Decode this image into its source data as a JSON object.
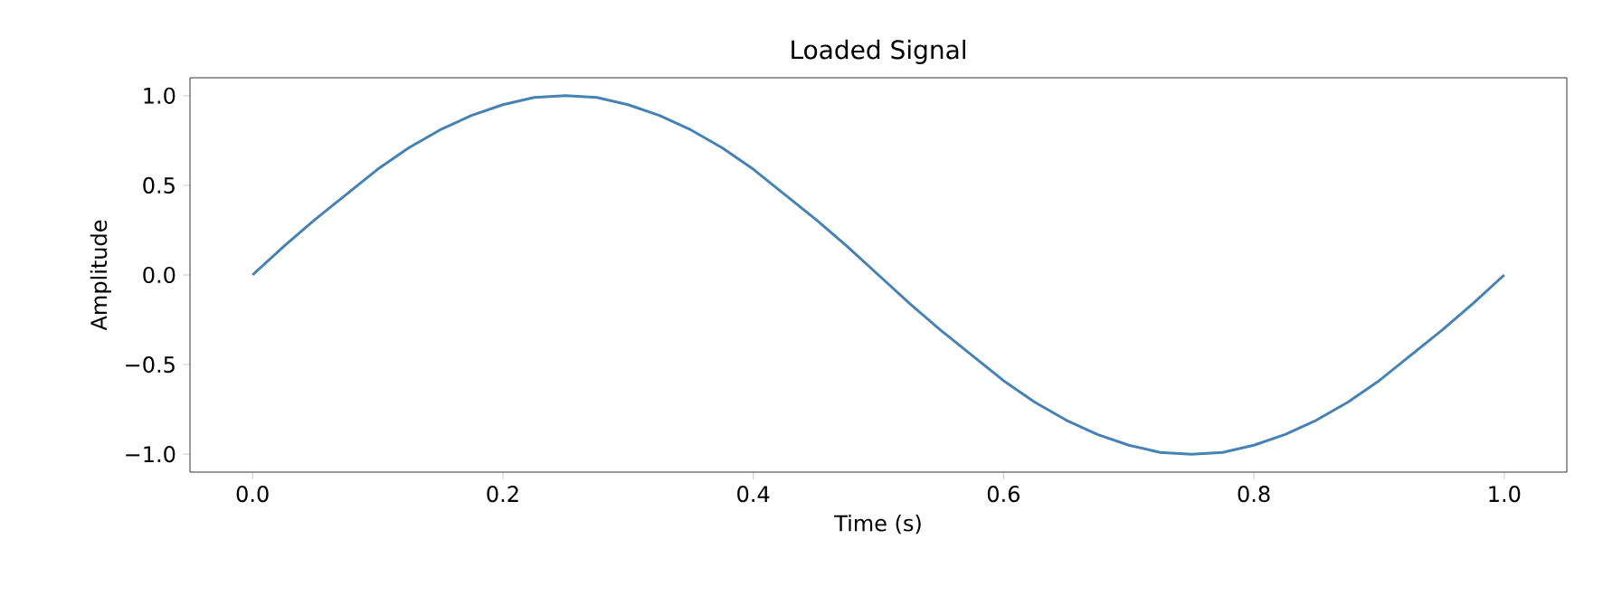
{
  "chart_data": {
    "type": "line",
    "title": "Loaded Signal",
    "xlabel": "Time (s)",
    "ylabel": "Amplitude",
    "color": "#4682b4",
    "x": [
      0,
      0.025,
      0.05,
      0.075,
      0.1,
      0.125,
      0.15,
      0.175,
      0.2,
      0.225,
      0.25,
      0.275,
      0.3,
      0.325,
      0.35,
      0.375,
      0.4,
      0.425,
      0.45,
      0.475,
      0.5,
      0.525,
      0.55,
      0.575,
      0.6,
      0.625,
      0.65,
      0.675,
      0.7,
      0.725,
      0.75,
      0.775,
      0.8,
      0.825,
      0.85,
      0.875,
      0.9,
      0.925,
      0.95,
      0.975,
      1.0
    ],
    "values": [
      0,
      0.16,
      0.31,
      0.45,
      0.59,
      0.71,
      0.81,
      0.89,
      0.95,
      0.99,
      1.0,
      0.99,
      0.95,
      0.89,
      0.81,
      0.71,
      0.59,
      0.45,
      0.31,
      0.16,
      0,
      -0.16,
      -0.31,
      -0.45,
      -0.59,
      -0.71,
      -0.81,
      -0.89,
      -0.95,
      -0.99,
      -1.0,
      -0.99,
      -0.95,
      -0.89,
      -0.81,
      -0.71,
      -0.59,
      -0.45,
      -0.31,
      -0.16,
      0
    ],
    "xlim": [
      -0.05,
      1.05
    ],
    "ylim": [
      -1.1,
      1.1
    ],
    "xticks": [
      {
        "value": 0,
        "label": "0.0"
      },
      {
        "value": 0.2,
        "label": "0.2"
      },
      {
        "value": 0.4,
        "label": "0.4"
      },
      {
        "value": 0.6,
        "label": "0.6"
      },
      {
        "value": 0.8,
        "label": "0.8"
      },
      {
        "value": 1.0,
        "label": "1.0"
      }
    ],
    "yticks": [
      {
        "value": -1.0,
        "label": "−1.0"
      },
      {
        "value": -0.5,
        "label": "−0.5"
      },
      {
        "value": 0,
        "label": "0.0"
      },
      {
        "value": 0.5,
        "label": "0.5"
      },
      {
        "value": 1.0,
        "label": "1.0"
      }
    ]
  }
}
